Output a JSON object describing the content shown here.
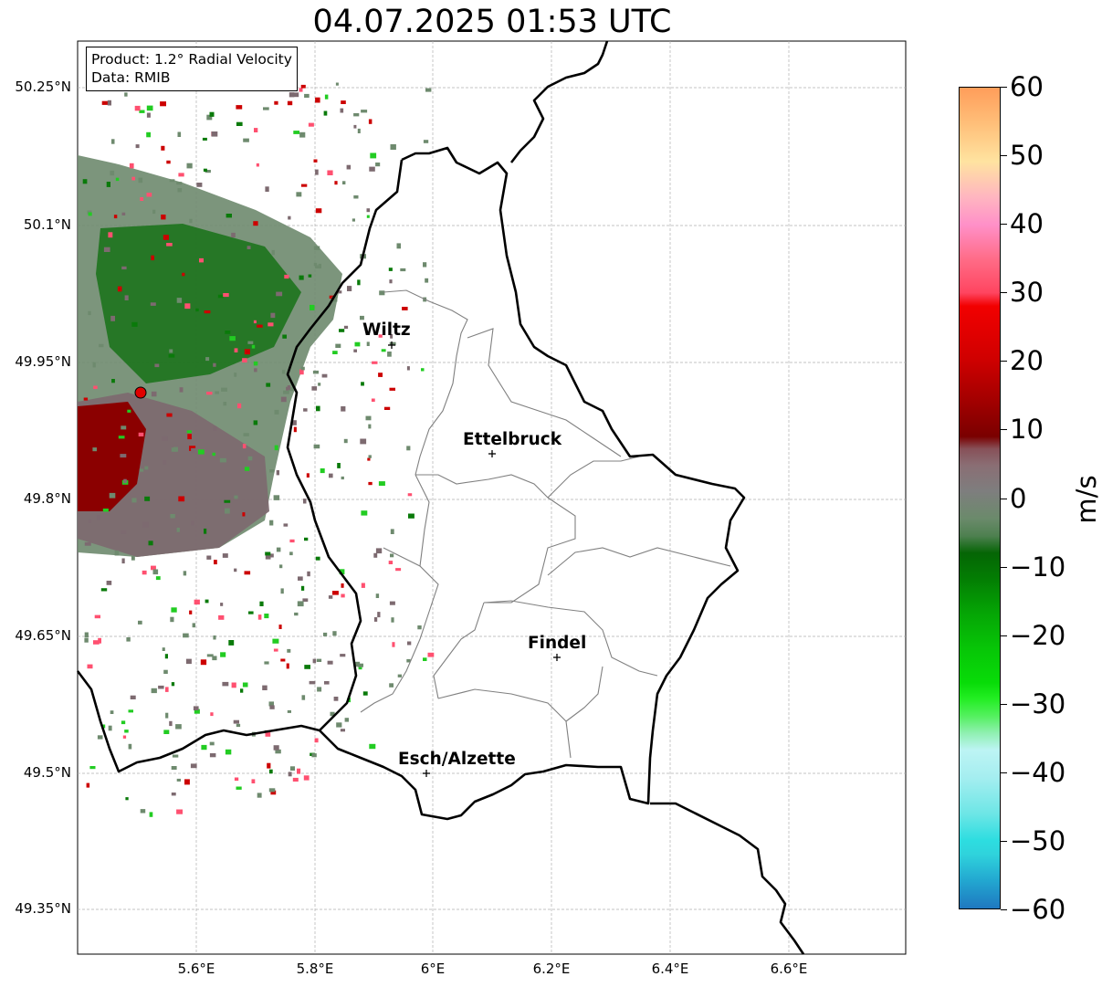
{
  "title": "04.07.2025 01:53 UTC",
  "info_box": {
    "product": "Product: 1.2° Radial Velocity",
    "data": "Data: RMIB"
  },
  "lat_ticks": [
    "50.25°N",
    "50.1°N",
    "49.95°N",
    "49.8°N",
    "49.65°N",
    "49.5°N",
    "49.35°N"
  ],
  "lon_ticks": [
    "5.6°E",
    "5.8°E",
    "6°E",
    "6.2°E",
    "6.4°E",
    "6.6°E"
  ],
  "cities": [
    {
      "name": "Wiltz",
      "lon": 5.93,
      "lat": 49.97
    },
    {
      "name": "Ettelbruck",
      "lon": 6.1,
      "lat": 49.85
    },
    {
      "name": "Findel",
      "lon": 6.21,
      "lat": 49.63
    },
    {
      "name": "Esch/Alzette",
      "lon": 5.99,
      "lat": 49.5
    }
  ],
  "radar_site": {
    "lon": 5.505,
    "lat": 49.915,
    "color": "#e00000"
  },
  "colorbar": {
    "label": "m/s",
    "ticks": [
      "60",
      "50",
      "40",
      "30",
      "20",
      "10",
      "0",
      "−10",
      "−20",
      "−30",
      "−40",
      "−50",
      "−60"
    ],
    "range": [
      -60,
      60
    ]
  },
  "colors": {
    "border": "#000000",
    "canton_lines": "#808080",
    "grid": "#b0b0b0",
    "inbound_green": "#0a7a0a",
    "outbound_red": "#8b0000",
    "near_zero": "#6e8a6e"
  }
}
